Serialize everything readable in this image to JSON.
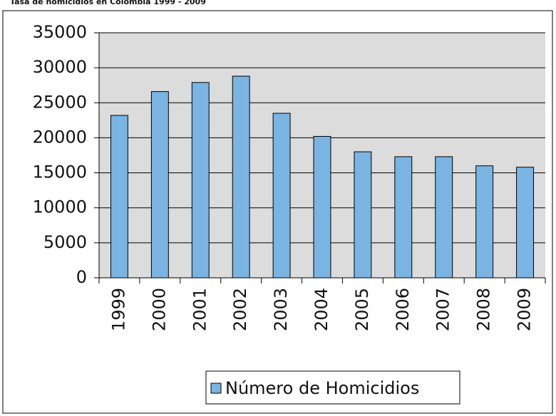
{
  "chart_data": {
    "type": "bar",
    "title": "Tasa de homicidios en Colombia 1999 - 2009",
    "categories": [
      "1999",
      "2000",
      "2001",
      "2002",
      "2003",
      "2004",
      "2005",
      "2006",
      "2007",
      "2008",
      "2009"
    ],
    "series": [
      {
        "name": "Número de Homicidios",
        "color": "#7ab4e2",
        "values": [
          23200,
          26600,
          27900,
          28800,
          23500,
          20200,
          18000,
          17300,
          17300,
          16000,
          15800
        ]
      }
    ],
    "ylim": [
      0,
      35000
    ],
    "yticks": [
      0,
      5000,
      10000,
      15000,
      20000,
      25000,
      30000,
      35000
    ],
    "grid": true,
    "legend": "bottom"
  }
}
